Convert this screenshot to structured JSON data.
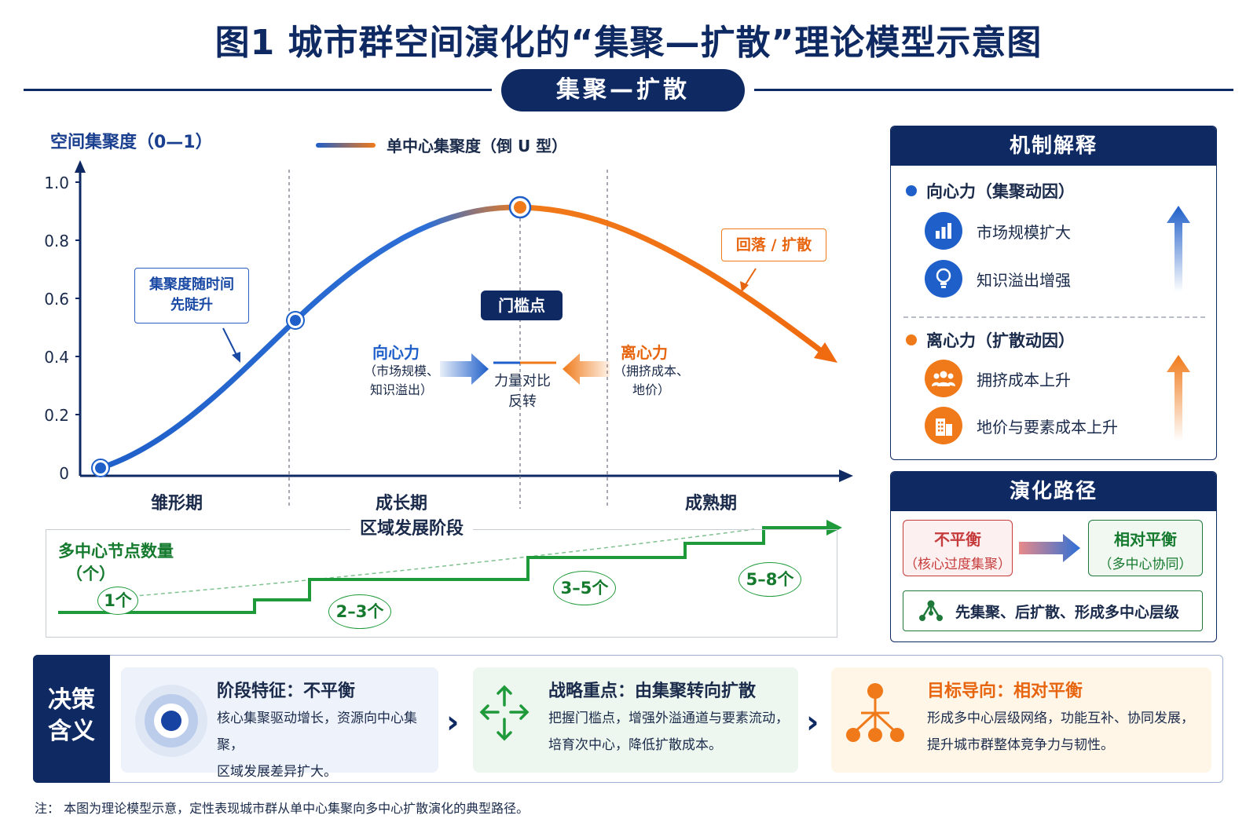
{
  "title": "图1  城市群空间演化的“集聚—扩散”理论模型示意图",
  "pill": "集聚—扩散",
  "chart": {
    "y_axis_label": "空间集聚度（0—1）",
    "legend": "单中心集聚度（倒 U 型）",
    "y_ticks": [
      "1.0",
      "0.8",
      "0.6",
      "0.4",
      "0.2",
      "0"
    ],
    "callout_rise": [
      "集聚度随时间",
      "先陡升"
    ],
    "callout_fall": "回落 / 扩散",
    "threshold_label": "门槛点",
    "centripetal": {
      "title": "向心力",
      "sub": [
        "（市场规模、",
        "知识溢出）"
      ]
    },
    "centrifugal": {
      "title": "离心力",
      "sub": [
        "（拥挤成本、",
        "地价）"
      ]
    },
    "reversal": [
      "力量对比",
      "反转"
    ],
    "stages": [
      "雏形期",
      "成长期",
      "成熟期"
    ],
    "x_axis_label": "区域发展阶段",
    "series_color_start": "#1f5fc9",
    "series_color_end": "#f07a1a"
  },
  "nodes": {
    "title": "多中心节点数量",
    "unit": "（个）",
    "steps": [
      "1个",
      "2–3个",
      "3–5个",
      "5–8个"
    ],
    "color": "#1f9a3a"
  },
  "mechanism": {
    "title": "机制解释",
    "centripetal": {
      "heading": "向心力（集聚动因）",
      "items": [
        {
          "label": "市场规模扩大",
          "icon": "bar-chart-icon"
        },
        {
          "label": "知识溢出增强",
          "icon": "lightbulb-icon"
        }
      ]
    },
    "centrifugal": {
      "heading": "离心力（扩散动因）",
      "items": [
        {
          "label": "拥挤成本上升",
          "icon": "crowd-icon"
        },
        {
          "label": "地价与要素成本上升",
          "icon": "building-icon"
        }
      ]
    }
  },
  "evolution": {
    "title": "演化路径",
    "from": {
      "main": "不平衡",
      "sub": "（核心过度集聚）"
    },
    "to": {
      "main": "相对平衡",
      "sub": "（多中心协同）"
    },
    "summary": "先集聚、后扩散、形成多中心层级"
  },
  "decision": {
    "label": [
      "决策",
      "含义"
    ],
    "cards": [
      {
        "title": "阶段特征：不平衡",
        "lines": [
          "核心集聚驱动增长，资源向中心集聚，",
          "区域发展差异扩大。"
        ],
        "icon": "target-icon"
      },
      {
        "title": "战略重点：由集聚转向扩散",
        "lines": [
          "把握门槛点，增强外溢通道与要素流动，",
          "培育次中心，降低扩散成本。"
        ],
        "icon": "spread-arrows-icon"
      },
      {
        "title": "目标导向：相对平衡",
        "lines": [
          "形成多中心层级网络，功能互补、协同发展，",
          "提升城市群整体竞争力与韧性。"
        ],
        "icon": "network-icon"
      }
    ]
  },
  "note": "注：  本图为理论模型示意，定性表现城市群从单中心集聚向多中心扩散演化的典型路径。"
}
